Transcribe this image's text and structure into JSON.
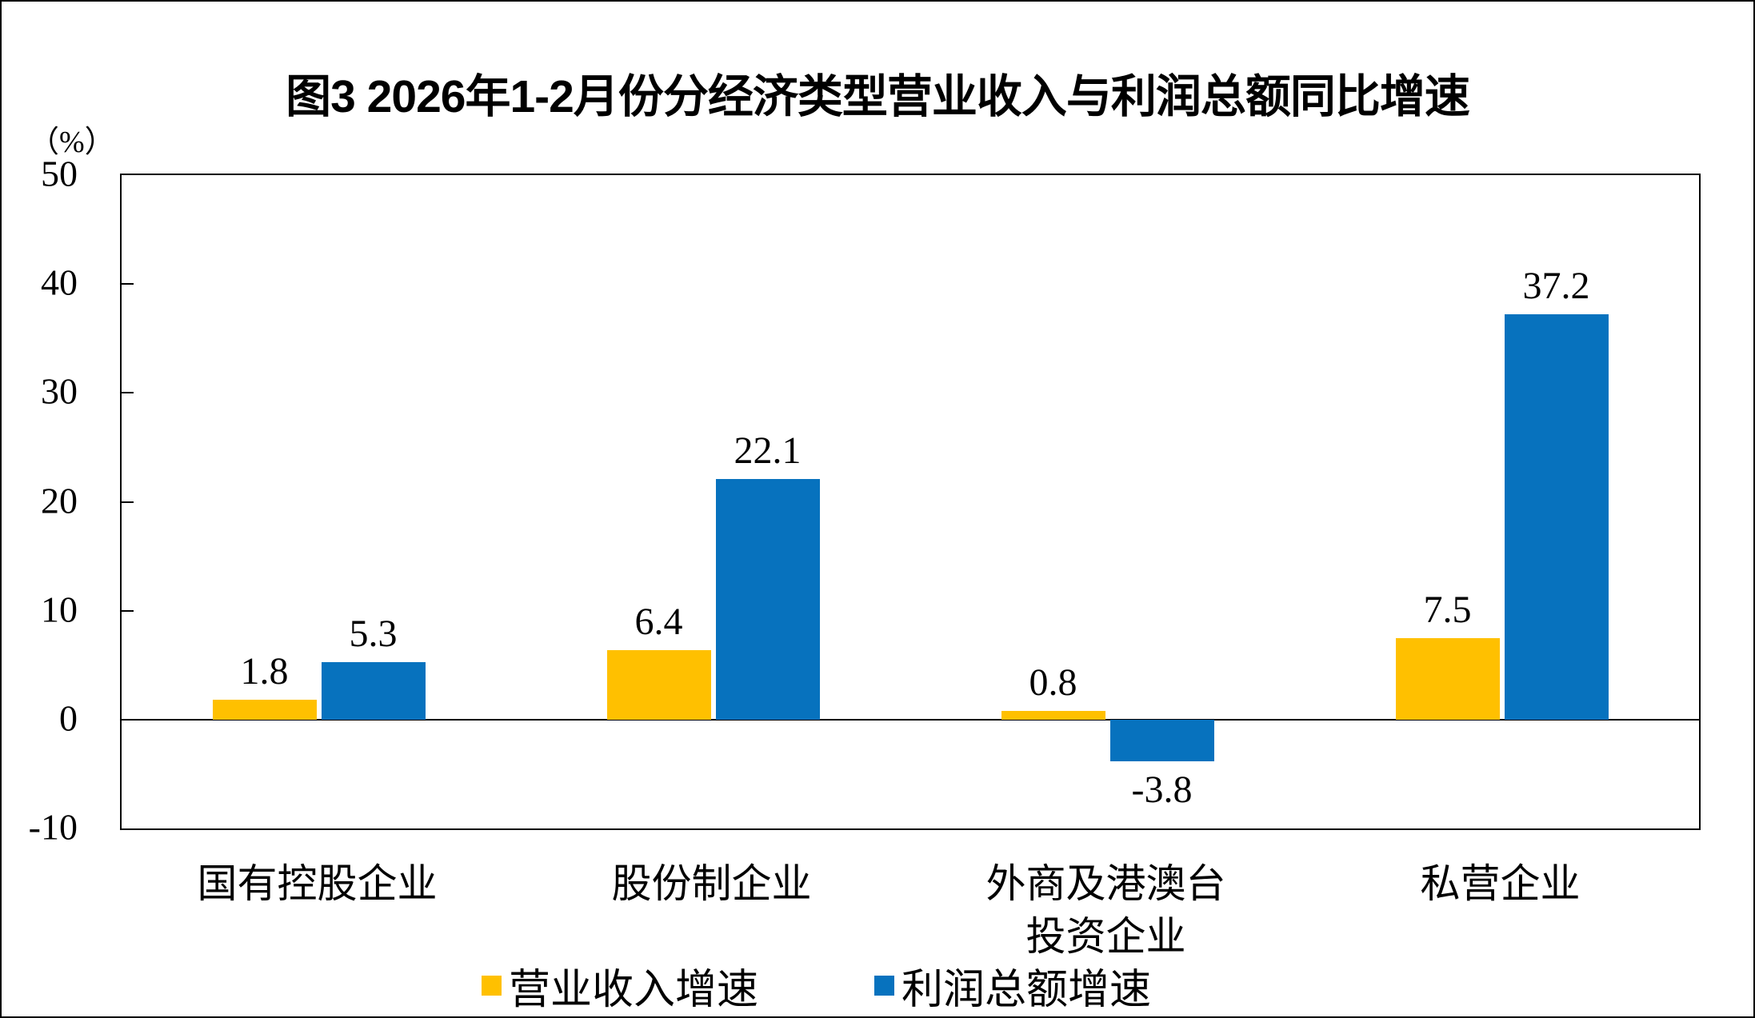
{
  "chart_data": {
    "type": "bar",
    "title": "图3 2026年1-2月份分经济类型营业收入与利润总额同比增速",
    "unit_label": "（%）",
    "categories": [
      "国有控股企业",
      "股份制企业",
      "外商及港澳台\n投资企业",
      "私营企业"
    ],
    "series": [
      {
        "name": "营业收入增速",
        "color": "#FFC000",
        "values": [
          1.8,
          6.4,
          0.8,
          7.5
        ]
      },
      {
        "name": "利润总额增速",
        "color": "#0772BE",
        "values": [
          5.3,
          22.1,
          -3.8,
          37.2
        ]
      }
    ],
    "ylim": [
      -10,
      50
    ],
    "ytick_step": 10,
    "ytick_labels": [
      "50",
      "40",
      "30",
      "20",
      "10",
      "0",
      "-10"
    ],
    "grid": false,
    "legend_position": "bottom",
    "value_label_decimals": 1
  }
}
